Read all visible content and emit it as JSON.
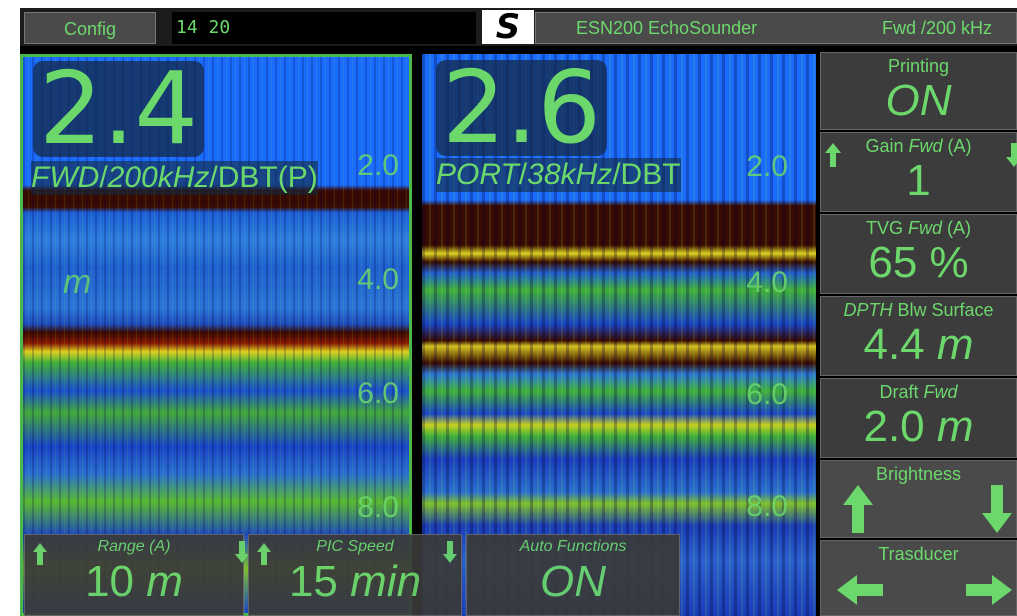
{
  "header": {
    "config_label": "Config",
    "time": "14  20",
    "logo": "S",
    "app_title": "ESN200 EchoSounder",
    "mode": "Fwd /200 kHz"
  },
  "left_panel": {
    "depth": "2.4",
    "transducer": "FWD",
    "freq": "200kHz",
    "ref": "DBT(P)",
    "unit": "m",
    "scale": [
      "2.0",
      "4.0",
      "6.0",
      "8.0"
    ]
  },
  "right_panel": {
    "depth": "2.6",
    "transducer": "PORT",
    "freq": "38kHz",
    "ref": "DBT",
    "scale": [
      "2.0",
      "4.0",
      "6.0",
      "8.0"
    ]
  },
  "side_buttons": {
    "printing": {
      "label": "Printing",
      "value": "ON"
    },
    "gain": {
      "label_a": "Gain ",
      "label_b": "Fwd",
      "label_c": " (A)",
      "value": "1"
    },
    "tvg": {
      "label_a": "TVG ",
      "label_b": "Fwd",
      "label_c": " (A)",
      "value": "65 %"
    },
    "depth": {
      "label_a": "DPTH",
      "label_b": " Blw Surface",
      "value": "4.4",
      "unit": "m"
    },
    "draft": {
      "label_a": "Draft ",
      "label_b": "Fwd",
      "value": "2.0",
      "unit": "m"
    },
    "brightness": {
      "label": "Brightness"
    },
    "transducer": {
      "label": "Trasducer"
    }
  },
  "bottom_controls": {
    "range": {
      "label": "Range (A)",
      "value": "10",
      "unit": "m"
    },
    "pic_speed": {
      "label": "PIC Speed",
      "value": "15",
      "unit": "min"
    },
    "auto": {
      "label": "Auto Functions",
      "value": "ON"
    }
  },
  "colors": {
    "accent": "#6cd86c",
    "water": "#1a6cff",
    "bottom_dark": "#3a0a00"
  }
}
